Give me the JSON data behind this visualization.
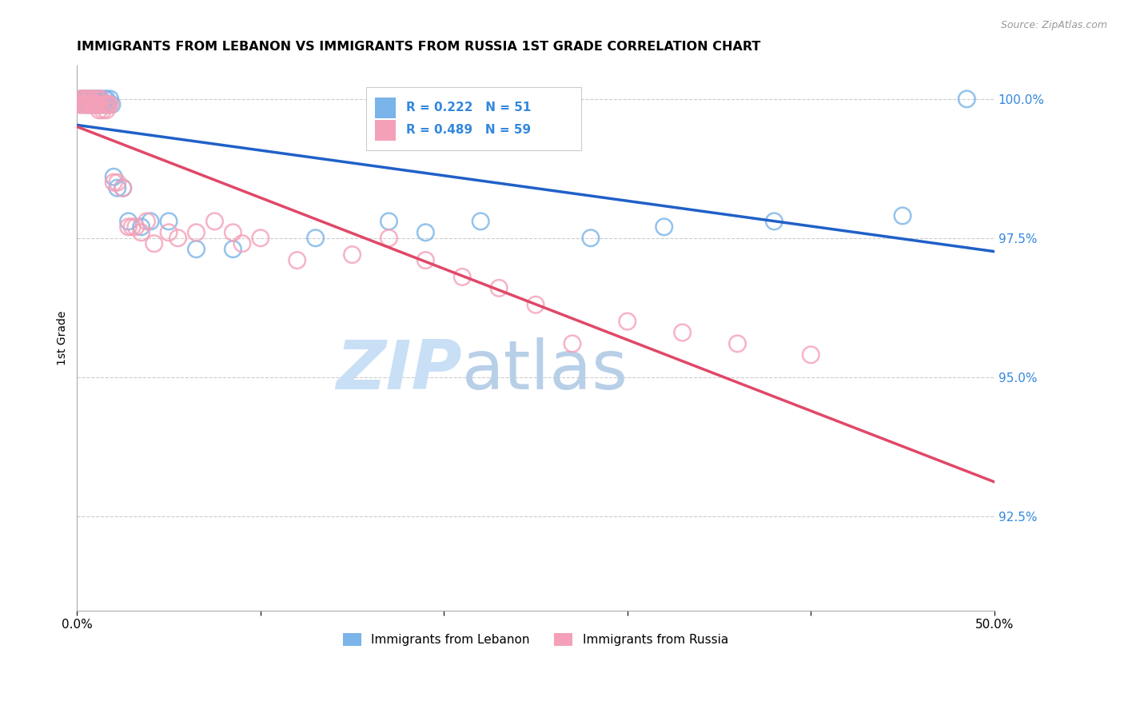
{
  "title": "IMMIGRANTS FROM LEBANON VS IMMIGRANTS FROM RUSSIA 1ST GRADE CORRELATION CHART",
  "source": "Source: ZipAtlas.com",
  "ylabel": "1st Grade",
  "ylabel_right_positions": [
    1.0,
    0.975,
    0.95,
    0.925
  ],
  "xlim": [
    0.0,
    0.5
  ],
  "ylim": [
    0.908,
    1.006
  ],
  "legend_label1": "Immigrants from Lebanon",
  "legend_label2": "Immigrants from Russia",
  "R_lebanon": 0.222,
  "N_lebanon": 51,
  "R_russia": 0.489,
  "N_russia": 59,
  "color_lebanon": "#7ab4e8",
  "color_russia": "#f4a0b8",
  "color_lebanon_line": "#2060c8",
  "color_russia_line": "#e04868",
  "color_right_axis": "#3388dd",
  "background_color": "#ffffff",
  "watermark_zip": "ZIP",
  "watermark_atlas": "atlas",
  "watermark_color_zip": "#c8dff5",
  "watermark_color_atlas": "#b8cfe8",
  "lebanon_x": [
    0.002,
    0.003,
    0.003,
    0.004,
    0.004,
    0.005,
    0.005,
    0.006,
    0.006,
    0.007,
    0.007,
    0.008,
    0.008,
    0.009,
    0.009,
    0.009,
    0.01,
    0.01,
    0.01,
    0.011,
    0.011,
    0.012,
    0.012,
    0.013,
    0.013,
    0.014,
    0.015,
    0.015,
    0.016,
    0.016,
    0.017,
    0.018,
    0.019,
    0.02,
    0.022,
    0.025,
    0.028,
    0.035,
    0.04,
    0.05,
    0.065,
    0.085,
    0.13,
    0.17,
    0.19,
    0.22,
    0.28,
    0.32,
    0.38,
    0.45,
    0.485
  ],
  "lebanon_y": [
    1.0,
    1.0,
    0.999,
    1.0,
    1.0,
    0.999,
    1.0,
    0.999,
    1.0,
    0.999,
    1.0,
    0.999,
    0.999,
    0.999,
    1.0,
    1.0,
    0.999,
    0.999,
    1.0,
    0.999,
    1.0,
    0.999,
    1.0,
    0.999,
    1.0,
    0.999,
    0.999,
    1.0,
    0.999,
    1.0,
    0.999,
    1.0,
    0.999,
    0.986,
    0.984,
    0.984,
    0.978,
    0.977,
    0.978,
    0.978,
    0.973,
    0.973,
    0.975,
    0.978,
    0.976,
    0.978,
    0.975,
    0.977,
    0.978,
    0.979,
    1.0
  ],
  "russia_x": [
    0.001,
    0.002,
    0.002,
    0.003,
    0.003,
    0.004,
    0.004,
    0.005,
    0.005,
    0.006,
    0.006,
    0.007,
    0.007,
    0.008,
    0.008,
    0.009,
    0.009,
    0.01,
    0.01,
    0.011,
    0.011,
    0.012,
    0.012,
    0.013,
    0.013,
    0.014,
    0.015,
    0.016,
    0.016,
    0.017,
    0.018,
    0.02,
    0.022,
    0.025,
    0.028,
    0.03,
    0.032,
    0.035,
    0.038,
    0.042,
    0.05,
    0.055,
    0.065,
    0.075,
    0.085,
    0.09,
    0.1,
    0.12,
    0.15,
    0.17,
    0.19,
    0.21,
    0.23,
    0.25,
    0.27,
    0.3,
    0.33,
    0.36,
    0.4
  ],
  "russia_y": [
    0.999,
    0.999,
    1.0,
    0.999,
    1.0,
    0.999,
    1.0,
    0.999,
    1.0,
    0.999,
    1.0,
    0.999,
    1.0,
    0.999,
    1.0,
    0.999,
    0.999,
    0.999,
    1.0,
    0.999,
    1.0,
    0.998,
    0.999,
    0.999,
    1.0,
    0.998,
    0.999,
    0.998,
    0.999,
    0.999,
    0.999,
    0.985,
    0.985,
    0.984,
    0.977,
    0.977,
    0.977,
    0.976,
    0.978,
    0.974,
    0.976,
    0.975,
    0.976,
    0.978,
    0.976,
    0.974,
    0.975,
    0.971,
    0.972,
    0.975,
    0.971,
    0.968,
    0.966,
    0.963,
    0.956,
    0.96,
    0.958,
    0.956,
    0.954
  ]
}
